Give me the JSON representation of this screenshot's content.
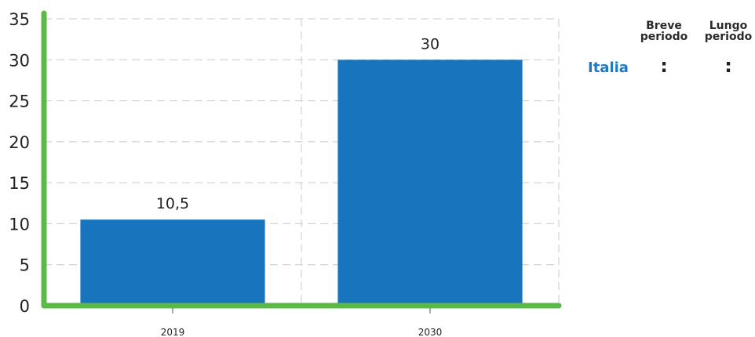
{
  "chart_data": {
    "type": "bar",
    "categories": [
      "2019",
      "2030"
    ],
    "values": [
      10.5,
      30
    ],
    "data_labels": [
      "10,5",
      "30"
    ],
    "title": "",
    "xlabel": "",
    "ylabel": "",
    "ylim": [
      0,
      35
    ],
    "yticks": [
      "0",
      "5",
      "10",
      "15",
      "20",
      "25",
      "30",
      "35"
    ],
    "grid": true,
    "bar_color": "#1874bd",
    "axis_color": "#5cb848"
  },
  "side_table": {
    "columns": [
      "Breve\nperiodo",
      "Lungo\nperiodo"
    ],
    "row_label": "Italia",
    "cells": [
      ":",
      ":"
    ],
    "label_color": "#1f78c0"
  }
}
